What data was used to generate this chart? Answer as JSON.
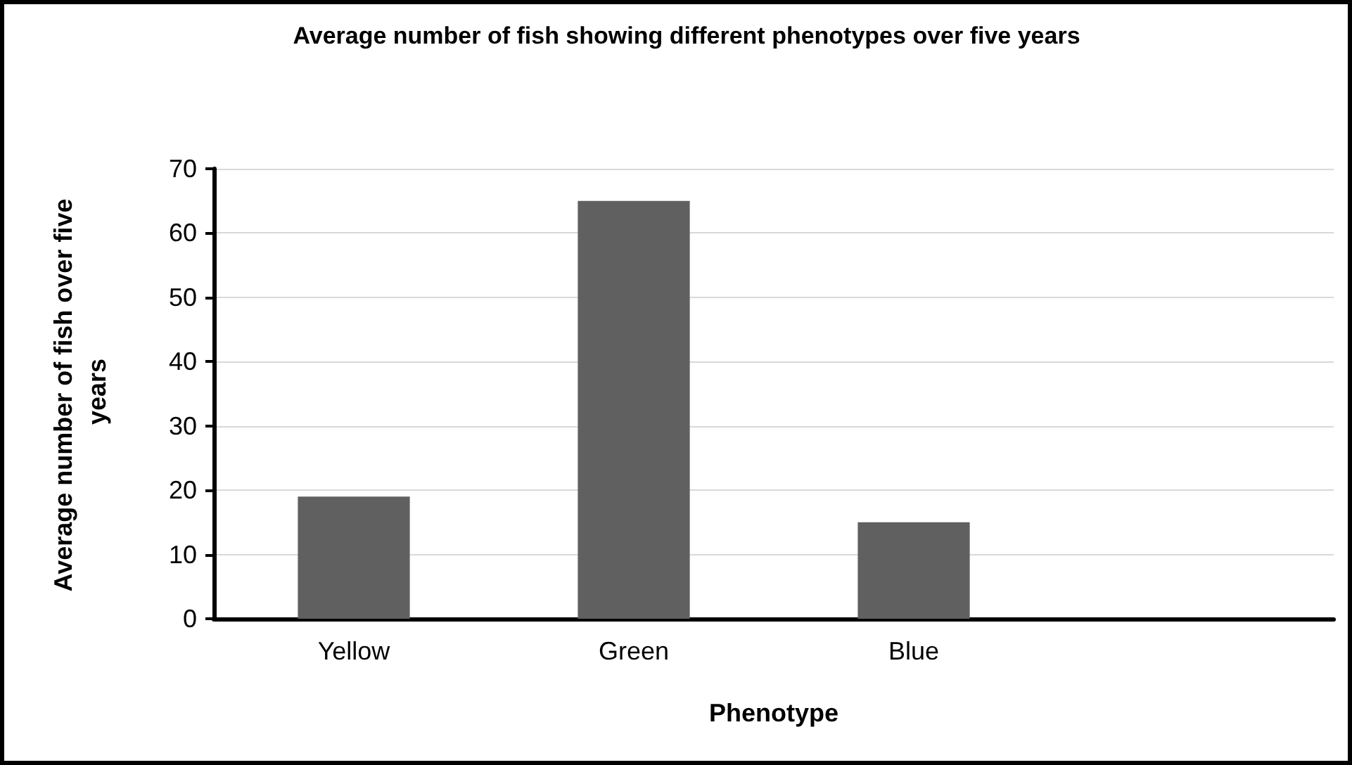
{
  "chart_data": {
    "type": "bar",
    "title": "Average number of fish showing different phenotypes over five years",
    "xlabel": "Phenotype",
    "ylabel": "Average number of fish over five years",
    "categories": [
      "Yellow",
      "Green",
      "Blue",
      null
    ],
    "values": [
      19,
      65,
      15,
      null
    ],
    "color": "#606060",
    "ylim": [
      0,
      70
    ],
    "yticks": [
      0,
      10,
      20,
      30,
      40,
      50,
      60,
      70
    ],
    "grid": "y"
  }
}
